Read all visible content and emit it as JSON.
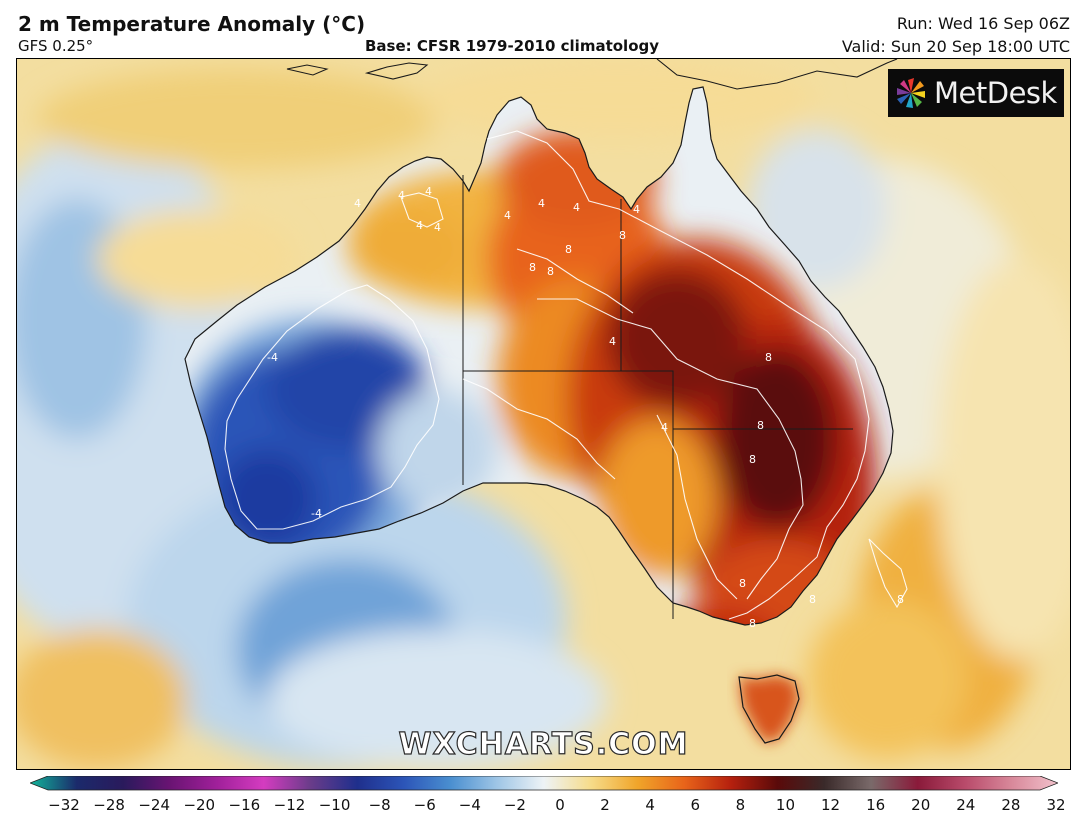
{
  "header": {
    "title": "2 m Temperature Anomaly (°C)",
    "model": "GFS 0.25°",
    "base": "Base: CFSR 1979-2010 climatology",
    "run": "Run: Wed 16 Sep 06Z",
    "valid": "Valid: Sun 20 Sep 18:00 UTC"
  },
  "logo": {
    "text": "MetDesk",
    "icon": "pinwheel-icon"
  },
  "watermark": "WXCHARTS.COM",
  "colorbar": {
    "ticks": [
      "−32",
      "−28",
      "−24",
      "−20",
      "−16",
      "−12",
      "−10",
      "−8",
      "−6",
      "−4",
      "−2",
      "0",
      "2",
      "4",
      "6",
      "8",
      "10",
      "12",
      "16",
      "20",
      "24",
      "28",
      "32"
    ],
    "colors": [
      "#12b59a",
      "#1b2a6b",
      "#2a1a5c",
      "#6a1473",
      "#a0209a",
      "#d43cc0",
      "#6a3c8a",
      "#1f2f8c",
      "#2c55b8",
      "#4a8fd0",
      "#9fc6e6",
      "#eef3f6",
      "#f6dc8a",
      "#f0a52a",
      "#e8641a",
      "#b5200e",
      "#5a0a0a",
      "#3a2a2a",
      "#7a6a6a",
      "#8a1a3a",
      "#b84a6a",
      "#d8889a",
      "#f2c2cc"
    ]
  },
  "map": {
    "region": "Australia",
    "contour_labels": [
      {
        "text": "4"
      },
      {
        "text": "4"
      },
      {
        "text": "4"
      },
      {
        "text": "4"
      },
      {
        "text": "4"
      },
      {
        "text": "4"
      },
      {
        "text": "4"
      },
      {
        "text": "4"
      },
      {
        "text": "4"
      },
      {
        "text": "4"
      },
      {
        "text": "4"
      },
      {
        "text": "8"
      },
      {
        "text": "8"
      },
      {
        "text": "8"
      },
      {
        "text": "8"
      },
      {
        "text": "8"
      },
      {
        "text": "8"
      },
      {
        "text": "8"
      },
      {
        "text": "8"
      },
      {
        "text": "8"
      },
      {
        "text": "8"
      },
      {
        "text": "8"
      },
      {
        "text": "-4"
      },
      {
        "text": "-4"
      }
    ]
  }
}
